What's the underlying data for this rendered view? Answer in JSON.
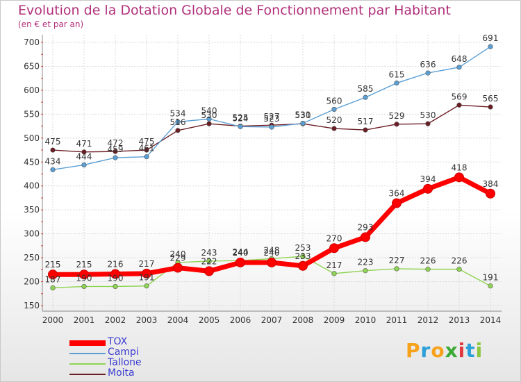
{
  "header": {
    "title": "Evolution de la Dotation Globale de Fonctionnement par Habitant",
    "subtitle": "(en € et par an)"
  },
  "logo": {
    "letters": [
      "P",
      "r",
      "o",
      "x",
      "i",
      "t",
      "i"
    ],
    "colors": [
      "#f7a21b",
      "#2a9fd8",
      "#f7a21b",
      "#3aa935",
      "#e03a3e",
      "#2a9fd8",
      "#8dc63f"
    ]
  },
  "chart_data": {
    "type": "line",
    "title": "Evolution de la Dotation Globale de Fonctionnement par Habitant",
    "subtitle": "(en € et par an)",
    "x": [
      "2000",
      "2001",
      "2002",
      "2003",
      "2004",
      "2005",
      "2006",
      "2007",
      "2008",
      "2009",
      "2010",
      "2011",
      "2012",
      "2013",
      "2014"
    ],
    "ylim": [
      150,
      700
    ],
    "yticks": [
      150,
      200,
      250,
      300,
      350,
      400,
      450,
      500,
      550,
      600,
      650,
      700
    ],
    "grid": true,
    "legend_position": "bottom-left",
    "series": [
      {
        "name": "Moita",
        "color": "#6b1d24",
        "values": [
          475,
          471,
          472,
          475,
          516,
          530,
          525,
          527,
          530,
          520,
          517,
          529,
          530,
          569,
          565
        ]
      },
      {
        "name": "Campi",
        "color": "#5a9fd4",
        "values": [
          434,
          444,
          459,
          461,
          534,
          540,
          524,
          523,
          531,
          560,
          585,
          615,
          636,
          648,
          691
        ]
      },
      {
        "name": "Tallone",
        "color": "#8fd452",
        "values": [
          187,
          190,
          190,
          191,
          240,
          243,
          244,
          248,
          253,
          217,
          223,
          227,
          226,
          226,
          191
        ]
      },
      {
        "name": "TOX",
        "color": "#ff0000",
        "values": [
          215,
          215,
          216,
          217,
          229,
          222,
          240,
          240,
          233,
          270,
          293,
          364,
          394,
          418,
          384
        ]
      }
    ],
    "legend": [
      "TOX",
      "Campi",
      "Tallone",
      "Moita"
    ]
  }
}
